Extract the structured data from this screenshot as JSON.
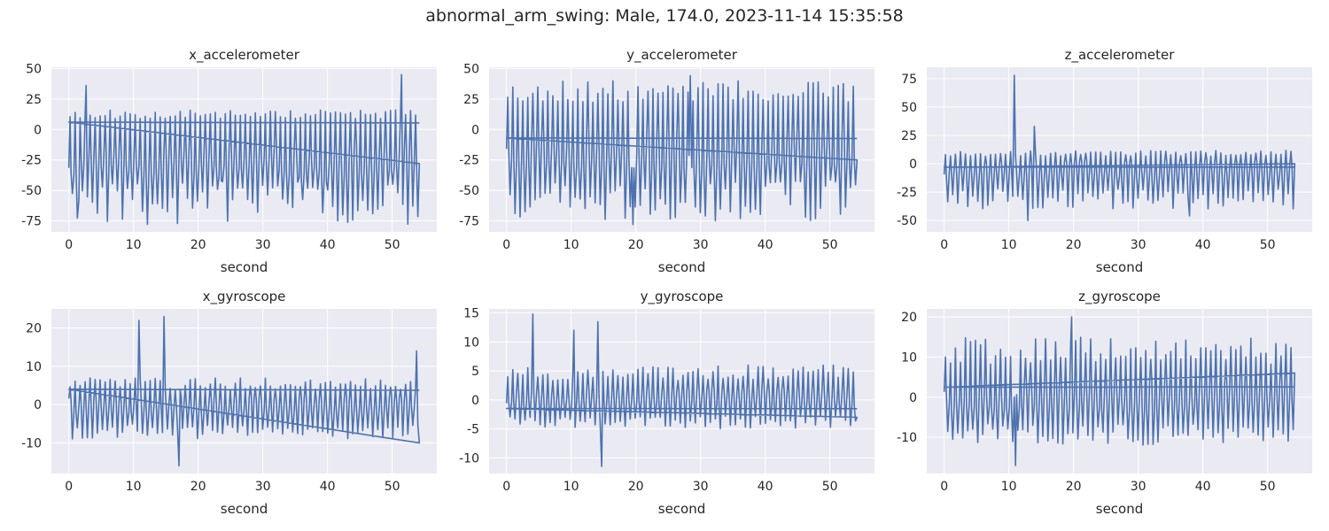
{
  "figure": {
    "title": "abnormal_arm_swing: Male, 174.0, 2023-11-14 15:35:58"
  },
  "style": {
    "background": "#ffffff",
    "axes_face": "#eaeaf2",
    "grid_color": "#ffffff",
    "line_color": "#4c72b0",
    "text_color": "#262626"
  },
  "chart_data": [
    {
      "type": "line",
      "title": "x_accelerometer",
      "xlabel": "second",
      "ylabel": "",
      "xlim": [
        -2.7,
        56.9
      ],
      "ylim": [
        -84,
        51
      ],
      "xticks": [
        0,
        10,
        20,
        30,
        40,
        50
      ],
      "yticks": [
        -75,
        -50,
        -25,
        0,
        25,
        50
      ],
      "duration": 54.2,
      "cycles": 70,
      "baseline": -28,
      "amp_high": 16,
      "amp_low": -78,
      "wrap_start": 6,
      "wrap_end": -28,
      "spikes": [
        {
          "x": 2.7,
          "y": 36
        },
        {
          "x": 1.5,
          "y": -58
        },
        {
          "x": 51.5,
          "y": 45
        }
      ],
      "seed": 11,
      "grid": true,
      "legend": "none"
    },
    {
      "type": "line",
      "title": "y_accelerometer",
      "xlabel": "second",
      "ylabel": "",
      "xlim": [
        -2.7,
        56.9
      ],
      "ylim": [
        -84,
        51
      ],
      "xticks": [
        0,
        10,
        20,
        30,
        40,
        50
      ],
      "yticks": [
        -75,
        -50,
        -25,
        0,
        25,
        50
      ],
      "duration": 54.2,
      "cycles": 70,
      "baseline": -18,
      "amp_high": 40,
      "amp_low": -75,
      "wrap_start": -7,
      "wrap_end": -25,
      "spikes": [
        {
          "x": 28.5,
          "y": 44
        },
        {
          "x": 19.5,
          "y": -78
        }
      ],
      "seed": 23,
      "grid": true,
      "legend": "none"
    },
    {
      "type": "line",
      "title": "z_accelerometer",
      "xlabel": "second",
      "ylabel": "",
      "xlim": [
        -2.7,
        56.9
      ],
      "ylim": [
        -60,
        85
      ],
      "xticks": [
        0,
        10,
        20,
        30,
        40,
        50
      ],
      "yticks": [
        -50,
        -25,
        0,
        25,
        50,
        75
      ],
      "duration": 54.2,
      "cycles": 70,
      "baseline": -5,
      "amp_high": 12,
      "amp_low": -40,
      "wrap_start": -3,
      "wrap_end": 0,
      "spikes": [
        {
          "x": 10.8,
          "y": 78
        },
        {
          "x": 14.0,
          "y": 33
        },
        {
          "x": 38.0,
          "y": -46
        },
        {
          "x": 13.0,
          "y": -50
        }
      ],
      "seed": 37,
      "grid": true,
      "legend": "none"
    },
    {
      "type": "line",
      "title": "x_gyroscope",
      "xlabel": "second",
      "ylabel": "",
      "xlim": [
        -2.7,
        56.9
      ],
      "ylim": [
        -18,
        25
      ],
      "xticks": [
        0,
        10,
        20,
        30,
        40,
        50
      ],
      "yticks": [
        -10,
        0,
        10,
        20
      ],
      "duration": 54.2,
      "cycles": 70,
      "baseline": 0,
      "amp_high": 7,
      "amp_low": -9,
      "wrap_start": 4,
      "wrap_end": -10,
      "spikes": [
        {
          "x": 10.8,
          "y": 22
        },
        {
          "x": 14.6,
          "y": 23
        },
        {
          "x": 17.0,
          "y": -16
        },
        {
          "x": 53.8,
          "y": 14
        }
      ],
      "seed": 41,
      "grid": true,
      "legend": "none"
    },
    {
      "type": "line",
      "title": "y_gyroscope",
      "xlabel": "second",
      "ylabel": "",
      "xlim": [
        -2.7,
        56.9
      ],
      "ylim": [
        -12.7,
        15.7
      ],
      "xticks": [
        0,
        10,
        20,
        30,
        40,
        50
      ],
      "yticks": [
        -10,
        -5,
        0,
        5,
        10,
        15
      ],
      "duration": 54.2,
      "cycles": 70,
      "baseline": 0.5,
      "amp_high": 6,
      "amp_low": -5,
      "wrap_start": -1.5,
      "wrap_end": -3,
      "spikes": [
        {
          "x": 4.0,
          "y": 14.8
        },
        {
          "x": 14.8,
          "y": -11.5
        },
        {
          "x": 14.2,
          "y": 13.5
        },
        {
          "x": 10.5,
          "y": 12
        }
      ],
      "seed": 53,
      "grid": true,
      "legend": "none"
    },
    {
      "type": "line",
      "title": "z_gyroscope",
      "xlabel": "second",
      "ylabel": "",
      "xlim": [
        -2.7,
        56.9
      ],
      "ylim": [
        -19,
        22
      ],
      "xticks": [
        0,
        10,
        20,
        30,
        40,
        50
      ],
      "yticks": [
        -10,
        0,
        10,
        20
      ],
      "duration": 54.2,
      "cycles": 70,
      "baseline": 0,
      "amp_high": 15,
      "amp_low": -12,
      "wrap_start": 2.5,
      "wrap_end": 6,
      "spikes": [
        {
          "x": 11.1,
          "y": 20
        },
        {
          "x": 19.8,
          "y": 20
        },
        {
          "x": 11.0,
          "y": -17
        }
      ],
      "seed": 67,
      "grid": true,
      "legend": "none"
    }
  ]
}
